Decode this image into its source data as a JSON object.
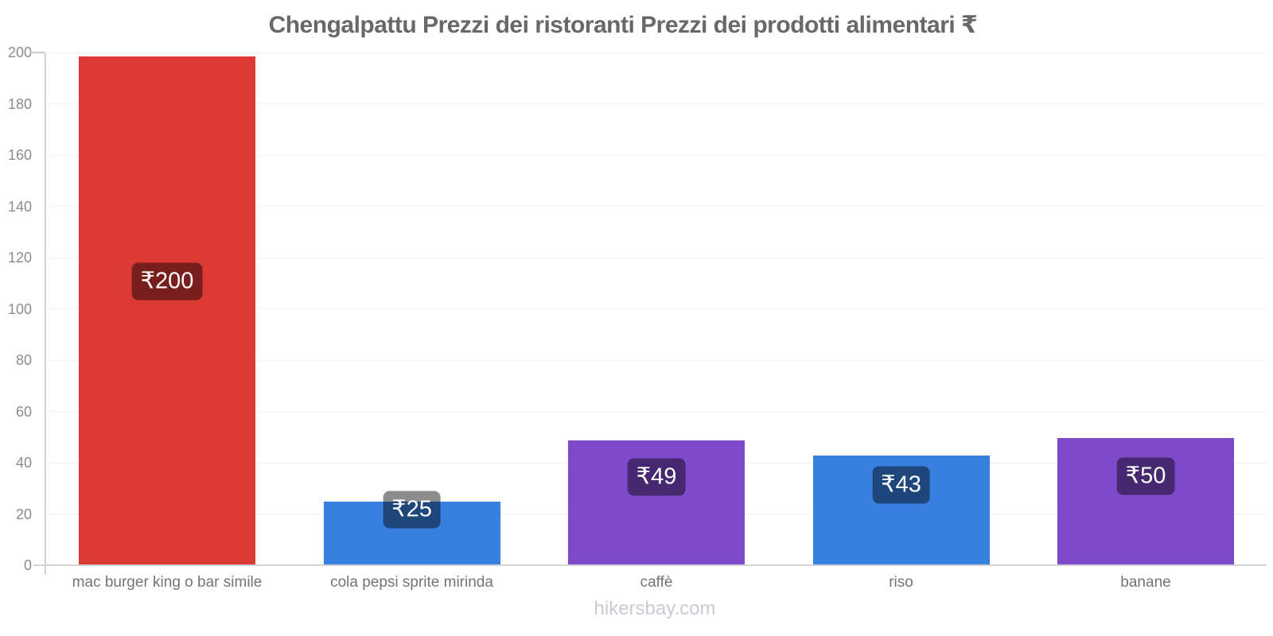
{
  "title": "Chengalpattu Prezzi dei ristoranti Prezzi dei prodotti alimentari ₹",
  "footer": "hikersbay.com",
  "chart_data": {
    "type": "bar",
    "title": "Chengalpattu Prezzi dei ristoranti Prezzi dei prodotti alimentari ₹",
    "categories": [
      "mac burger king o bar simile",
      "cola pepsi sprite mirinda",
      "caffè",
      "riso",
      "banane"
    ],
    "values": [
      200,
      25,
      49,
      43,
      50
    ],
    "bar_labels": [
      "₹200",
      "₹25",
      "₹49",
      "₹43",
      "₹50"
    ],
    "bar_colors": [
      "#db3a35",
      "#3780e0",
      "#7e4acb",
      "#3780e0",
      "#7e4acb"
    ],
    "currency_symbol": "₹",
    "xlabel": "",
    "ylabel": "",
    "ylim": [
      0,
      200
    ],
    "yticks": [
      0,
      20,
      40,
      60,
      80,
      100,
      120,
      140,
      160,
      180,
      200
    ],
    "grid": true,
    "legend": false,
    "value_label_style": {
      "background": "rgba(0,0,0,0.45)",
      "text_color": "#ffffff"
    },
    "source_watermark": "hikersbay.com"
  }
}
